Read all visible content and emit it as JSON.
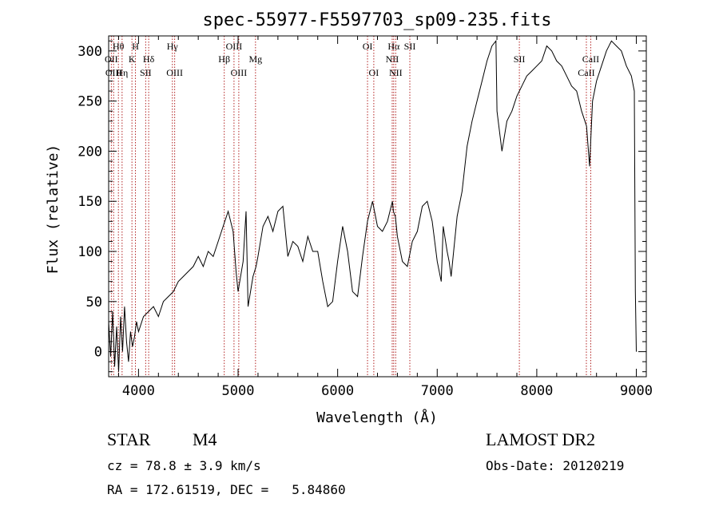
{
  "chart_data": {
    "type": "line",
    "title": "spec-55977-F5597703_sp09-235.fits",
    "xlabel": "Wavelength (Å)",
    "ylabel": "Flux (relative)",
    "xlim": [
      3700,
      9100
    ],
    "ylim": [
      -25,
      315
    ],
    "xticks": [
      4000,
      5000,
      6000,
      7000,
      8000,
      9000
    ],
    "yticks": [
      0,
      50,
      100,
      150,
      200,
      250,
      300
    ],
    "grid": false,
    "series": [
      {
        "x": [
          3700,
          3720,
          3740,
          3760,
          3780,
          3800,
          3820,
          3840,
          3860,
          3880,
          3900,
          3920,
          3940,
          3960,
          3980,
          4000,
          4050,
          4100,
          4150,
          4200,
          4250,
          4300,
          4350,
          4400,
          4450,
          4500,
          4550,
          4600,
          4650,
          4700,
          4750,
          4800,
          4850,
          4900,
          4950,
          4980,
          5000,
          5050,
          5080,
          5100,
          5150,
          5180,
          5200,
          5250,
          5300,
          5350,
          5400,
          5450,
          5500,
          5550,
          5600,
          5650,
          5700,
          5750,
          5800,
          5850,
          5900,
          5950,
          6000,
          6050,
          6100,
          6150,
          6200,
          6250,
          6300,
          6350,
          6400,
          6450,
          6500,
          6550,
          6560,
          6580,
          6600,
          6650,
          6700,
          6750,
          6800,
          6850,
          6900,
          6950,
          7000,
          7040,
          7060,
          7100,
          7120,
          7140,
          7200,
          7250,
          7300,
          7350,
          7400,
          7450,
          7500,
          7550,
          7590,
          7600,
          7650,
          7700,
          7750,
          7800,
          7850,
          7900,
          7950,
          8000,
          8050,
          8100,
          8150,
          8200,
          8250,
          8300,
          8350,
          8400,
          8450,
          8500,
          8530,
          8560,
          8600,
          8650,
          8700,
          8750,
          8800,
          8850,
          8900,
          8950,
          8980,
          8990,
          9000
        ],
        "y": [
          30,
          -5,
          40,
          -15,
          25,
          -20,
          35,
          0,
          45,
          10,
          -10,
          20,
          5,
          15,
          30,
          20,
          35,
          40,
          45,
          35,
          50,
          55,
          60,
          70,
          75,
          80,
          85,
          95,
          85,
          100,
          95,
          110,
          125,
          140,
          120,
          80,
          60,
          90,
          140,
          45,
          75,
          85,
          95,
          125,
          135,
          120,
          140,
          145,
          95,
          110,
          105,
          90,
          115,
          100,
          100,
          70,
          45,
          50,
          90,
          125,
          100,
          60,
          55,
          95,
          130,
          150,
          125,
          120,
          130,
          150,
          140,
          135,
          115,
          90,
          85,
          110,
          120,
          145,
          150,
          130,
          90,
          70,
          125,
          100,
          90,
          75,
          135,
          160,
          205,
          230,
          250,
          270,
          290,
          305,
          310,
          240,
          200,
          230,
          240,
          255,
          265,
          275,
          280,
          285,
          290,
          305,
          300,
          290,
          285,
          275,
          265,
          260,
          240,
          225,
          185,
          250,
          270,
          285,
          300,
          310,
          305,
          300,
          285,
          275,
          260,
          60,
          0
        ]
      }
    ],
    "line_markers": [
      {
        "x": 3727,
        "label": "OII",
        "row": 2
      },
      {
        "x": 3750,
        "label": "OIII",
        "row": 3
      },
      {
        "x": 3798,
        "label": "Hθ",
        "row": 1
      },
      {
        "x": 3835,
        "label": "Hη",
        "row": 3
      },
      {
        "x": 3934,
        "label": "K",
        "row": 2
      },
      {
        "x": 3969,
        "label": "H",
        "row": 1
      },
      {
        "x": 4072,
        "label": "SII",
        "row": 3
      },
      {
        "x": 4102,
        "label": "Hδ",
        "row": 2
      },
      {
        "x": 4340,
        "label": "Hγ",
        "row": 1
      },
      {
        "x": 4363,
        "label": "OIII",
        "row": 3
      },
      {
        "x": 4861,
        "label": "Hβ",
        "row": 2
      },
      {
        "x": 4959,
        "label": "OIII",
        "row": 1
      },
      {
        "x": 5007,
        "label": "OIII",
        "row": 3
      },
      {
        "x": 5175,
        "label": "Mg",
        "row": 2
      },
      {
        "x": 6300,
        "label": "OI",
        "row": 1
      },
      {
        "x": 6363,
        "label": "OI",
        "row": 3
      },
      {
        "x": 6548,
        "label": "NII",
        "row": 2
      },
      {
        "x": 6563,
        "label": "Hα",
        "row": 1
      },
      {
        "x": 6583,
        "label": "NII",
        "row": 3
      },
      {
        "x": 6725,
        "label": "SII",
        "row": 1
      },
      {
        "x": 7825,
        "label": "SII",
        "row": 2
      },
      {
        "x": 8498,
        "label": "CaII",
        "row": 3
      },
      {
        "x": 8542,
        "label": "CaII",
        "row": 2
      }
    ],
    "marker_color": "#b22222"
  },
  "info": {
    "object_class": "STAR",
    "subclass": "M4",
    "survey": "LAMOST DR2",
    "cz": "cz = 78.8 ± 3.9 km/s",
    "obs_date": "Obs-Date: 20120219",
    "radec": "RA = 172.61519, DEC =   5.84860"
  }
}
